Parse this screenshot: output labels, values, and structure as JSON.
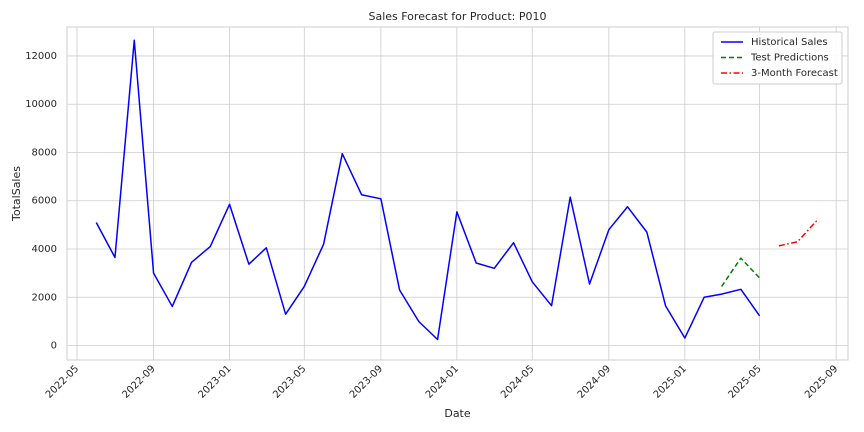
{
  "chart_data": {
    "type": "line",
    "title": "Sales Forecast for Product: P010",
    "xlabel": "Date",
    "ylabel": "TotalSales",
    "x_axis_type": "date",
    "xlim": [
      "2022-04-15",
      "2025-09-20"
    ],
    "ylim": [
      -600,
      13200
    ],
    "x_ticks": [
      "2022-05-01",
      "2022-09-01",
      "2023-01-01",
      "2023-05-01",
      "2023-09-01",
      "2024-01-01",
      "2024-05-01",
      "2024-09-01",
      "2025-01-01",
      "2025-05-01",
      "2025-09-01"
    ],
    "x_tick_labels": [
      "2022-05",
      "2022-09",
      "2023-01",
      "2023-05",
      "2023-09",
      "2024-01",
      "2024-05",
      "2024-09",
      "2025-01",
      "2025-05",
      "2025-09"
    ],
    "y_ticks": [
      0,
      2000,
      4000,
      6000,
      8000,
      10000,
      12000
    ],
    "y_tick_labels": [
      "0",
      "2000",
      "4000",
      "6000",
      "8000",
      "10000",
      "12000"
    ],
    "grid": true,
    "legend_position": "top-right",
    "series": [
      {
        "name": "Historical Sales",
        "color": "#0000ff",
        "style": "solid",
        "x": [
          "2022-06-01",
          "2022-07-01",
          "2022-08-01",
          "2022-09-01",
          "2022-10-01",
          "2022-11-01",
          "2022-12-01",
          "2023-01-01",
          "2023-02-01",
          "2023-03-01",
          "2023-04-01",
          "2023-05-01",
          "2023-06-01",
          "2023-07-01",
          "2023-08-01",
          "2023-09-01",
          "2023-10-01",
          "2023-11-01",
          "2023-12-01",
          "2024-01-01",
          "2024-02-01",
          "2024-03-01",
          "2024-04-01",
          "2024-05-01",
          "2024-06-01",
          "2024-07-01",
          "2024-08-01",
          "2024-09-01",
          "2024-10-01",
          "2024-11-01",
          "2024-12-01",
          "2025-01-01",
          "2025-02-01",
          "2025-03-01",
          "2025-04-01",
          "2025-05-01"
        ],
        "values": [
          5100,
          3650,
          12650,
          3000,
          1620,
          3450,
          4100,
          5850,
          3370,
          4050,
          1300,
          2450,
          4200,
          7950,
          6250,
          6080,
          2300,
          990,
          250,
          5540,
          3420,
          3200,
          4260,
          2640,
          1650,
          6150,
          2550,
          4800,
          5750,
          4700,
          1650,
          310,
          2000,
          2130,
          2330,
          1230
        ]
      },
      {
        "name": "Test Predictions",
        "color": "#008000",
        "style": "dashed",
        "x": [
          "2025-03-01",
          "2025-04-01",
          "2025-05-01"
        ],
        "values": [
          2450,
          3620,
          2800
        ]
      },
      {
        "name": "3-Month Forecast",
        "color": "#ff0000",
        "style": "dashdot",
        "x": [
          "2025-06-01",
          "2025-07-01",
          "2025-08-01"
        ],
        "values": [
          4130,
          4300,
          5180
        ]
      }
    ]
  }
}
